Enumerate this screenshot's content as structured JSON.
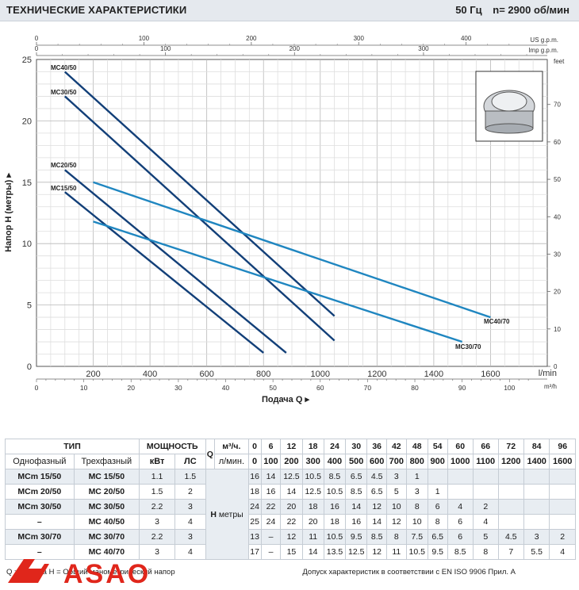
{
  "header": {
    "title": "ТЕХНИЧЕСКИЕ ХАРАКТЕРИСТИКИ",
    "frequency": "50 Гц",
    "speed": "n= 2900  об/мин"
  },
  "chart_data": {
    "type": "line",
    "xlabel": "Подача Q",
    "ylabel": "Напор Н (метры)",
    "x_unit_main": "l/min",
    "x_unit_m3h": "m³/h",
    "x_unit_usgpm": "US g.p.m.",
    "x_unit_impgpm": "Imp g.p.m.",
    "y_unit_feet": "feet",
    "xlim": [
      0,
      1800
    ],
    "ylim": [
      0,
      25
    ],
    "x_ticks": [
      "0",
      "200",
      "400",
      "600",
      "800",
      "1000",
      "1200",
      "1400",
      "1600"
    ],
    "y_ticks": [
      "0",
      "5",
      "10",
      "15",
      "20",
      "25"
    ],
    "m3h_ticks": [
      "0",
      "10",
      "20",
      "30",
      "40",
      "50",
      "60",
      "70",
      "80",
      "90",
      "100"
    ],
    "usgpm_ticks": [
      "0",
      "100",
      "200",
      "300",
      "400"
    ],
    "impgpm_ticks": [
      "0",
      "100",
      "200",
      "300"
    ],
    "feet_ticks": [
      "0",
      "10",
      "20",
      "30",
      "40",
      "50",
      "60",
      "70"
    ],
    "grid": true,
    "series": [
      {
        "name": "MC40/50",
        "x": [
          100,
          1050
        ],
        "y": [
          24,
          4.1
        ],
        "color": "#123f78"
      },
      {
        "name": "MC30/50",
        "x": [
          100,
          1050
        ],
        "y": [
          22,
          2.1
        ],
        "color": "#123f78"
      },
      {
        "name": "MC20/50",
        "x": [
          100,
          880
        ],
        "y": [
          16,
          1.1
        ],
        "color": "#123f78"
      },
      {
        "name": "MC15/50",
        "x": [
          100,
          800
        ],
        "y": [
          14.2,
          1.1
        ],
        "color": "#123f78"
      },
      {
        "name": "MC40/70",
        "x": [
          200,
          1600
        ],
        "y": [
          15,
          4
        ],
        "color": "#1f86c0"
      },
      {
        "name": "MC30/70",
        "x": [
          200,
          1500
        ],
        "y": [
          11.8,
          2
        ],
        "color": "#1f86c0"
      }
    ]
  },
  "table": {
    "type_header": "ТИП",
    "power_header": "МОЩНОСТЬ",
    "q_label": "Q",
    "q_unit_m3": "м³/ч.",
    "q_unit_lmin": "л/мин.",
    "single_phase": "Однофазный",
    "three_phase": "Трехфазный",
    "kw": "кВт",
    "hp": "ЛС",
    "h_label": "Н",
    "h_unit": "метры",
    "q_m3h": [
      "0",
      "6",
      "12",
      "18",
      "24",
      "30",
      "36",
      "42",
      "48",
      "54",
      "60",
      "66",
      "72",
      "84",
      "96"
    ],
    "q_lmin": [
      "0",
      "100",
      "200",
      "300",
      "400",
      "500",
      "600",
      "700",
      "800",
      "900",
      "1000",
      "1100",
      "1200",
      "1400",
      "1600"
    ],
    "rows": [
      {
        "single": "MCm 15/50",
        "three": "MC 15/50",
        "kw": "1.1",
        "hp": "1.5",
        "h": [
          "16",
          "14",
          "12.5",
          "10.5",
          "8.5",
          "6.5",
          "4.5",
          "3",
          "1",
          "",
          "",
          "",
          "",
          "",
          ""
        ]
      },
      {
        "single": "MCm 20/50",
        "three": "MC 20/50",
        "kw": "1.5",
        "hp": "2",
        "h": [
          "18",
          "16",
          "14",
          "12.5",
          "10.5",
          "8.5",
          "6.5",
          "5",
          "3",
          "1",
          "",
          "",
          "",
          "",
          ""
        ]
      },
      {
        "single": "MCm 30/50",
        "three": "MC 30/50",
        "kw": "2.2",
        "hp": "3",
        "h": [
          "24",
          "22",
          "20",
          "18",
          "16",
          "14",
          "12",
          "10",
          "8",
          "6",
          "4",
          "2",
          "",
          "",
          ""
        ]
      },
      {
        "single": "–",
        "three": "MC 40/50",
        "kw": "3",
        "hp": "4",
        "h": [
          "25",
          "24",
          "22",
          "20",
          "18",
          "16",
          "14",
          "12",
          "10",
          "8",
          "6",
          "4",
          "",
          "",
          ""
        ]
      },
      {
        "single": "MCm 30/70",
        "three": "MC 30/70",
        "kw": "2.2",
        "hp": "3",
        "h": [
          "13",
          "–",
          "12",
          "11",
          "10.5",
          "9.5",
          "8.5",
          "8",
          "7.5",
          "6.5",
          "6",
          "5",
          "4.5",
          "3",
          "2"
        ]
      },
      {
        "single": "–",
        "three": "MC 40/70",
        "kw": "3",
        "hp": "4",
        "h": [
          "17",
          "–",
          "15",
          "14",
          "13.5",
          "12.5",
          "12",
          "11",
          "10.5",
          "9.5",
          "8.5",
          "8",
          "7",
          "5.5",
          "4"
        ]
      }
    ]
  },
  "footer": {
    "legend": "Q = Подача   H = Общий манометрический напор",
    "tolerance": "Допуск характеристик в соответствии с EN ISO 9906 Прил. А"
  },
  "logo": {
    "text": "ASAO",
    "color": "#e0261b"
  }
}
